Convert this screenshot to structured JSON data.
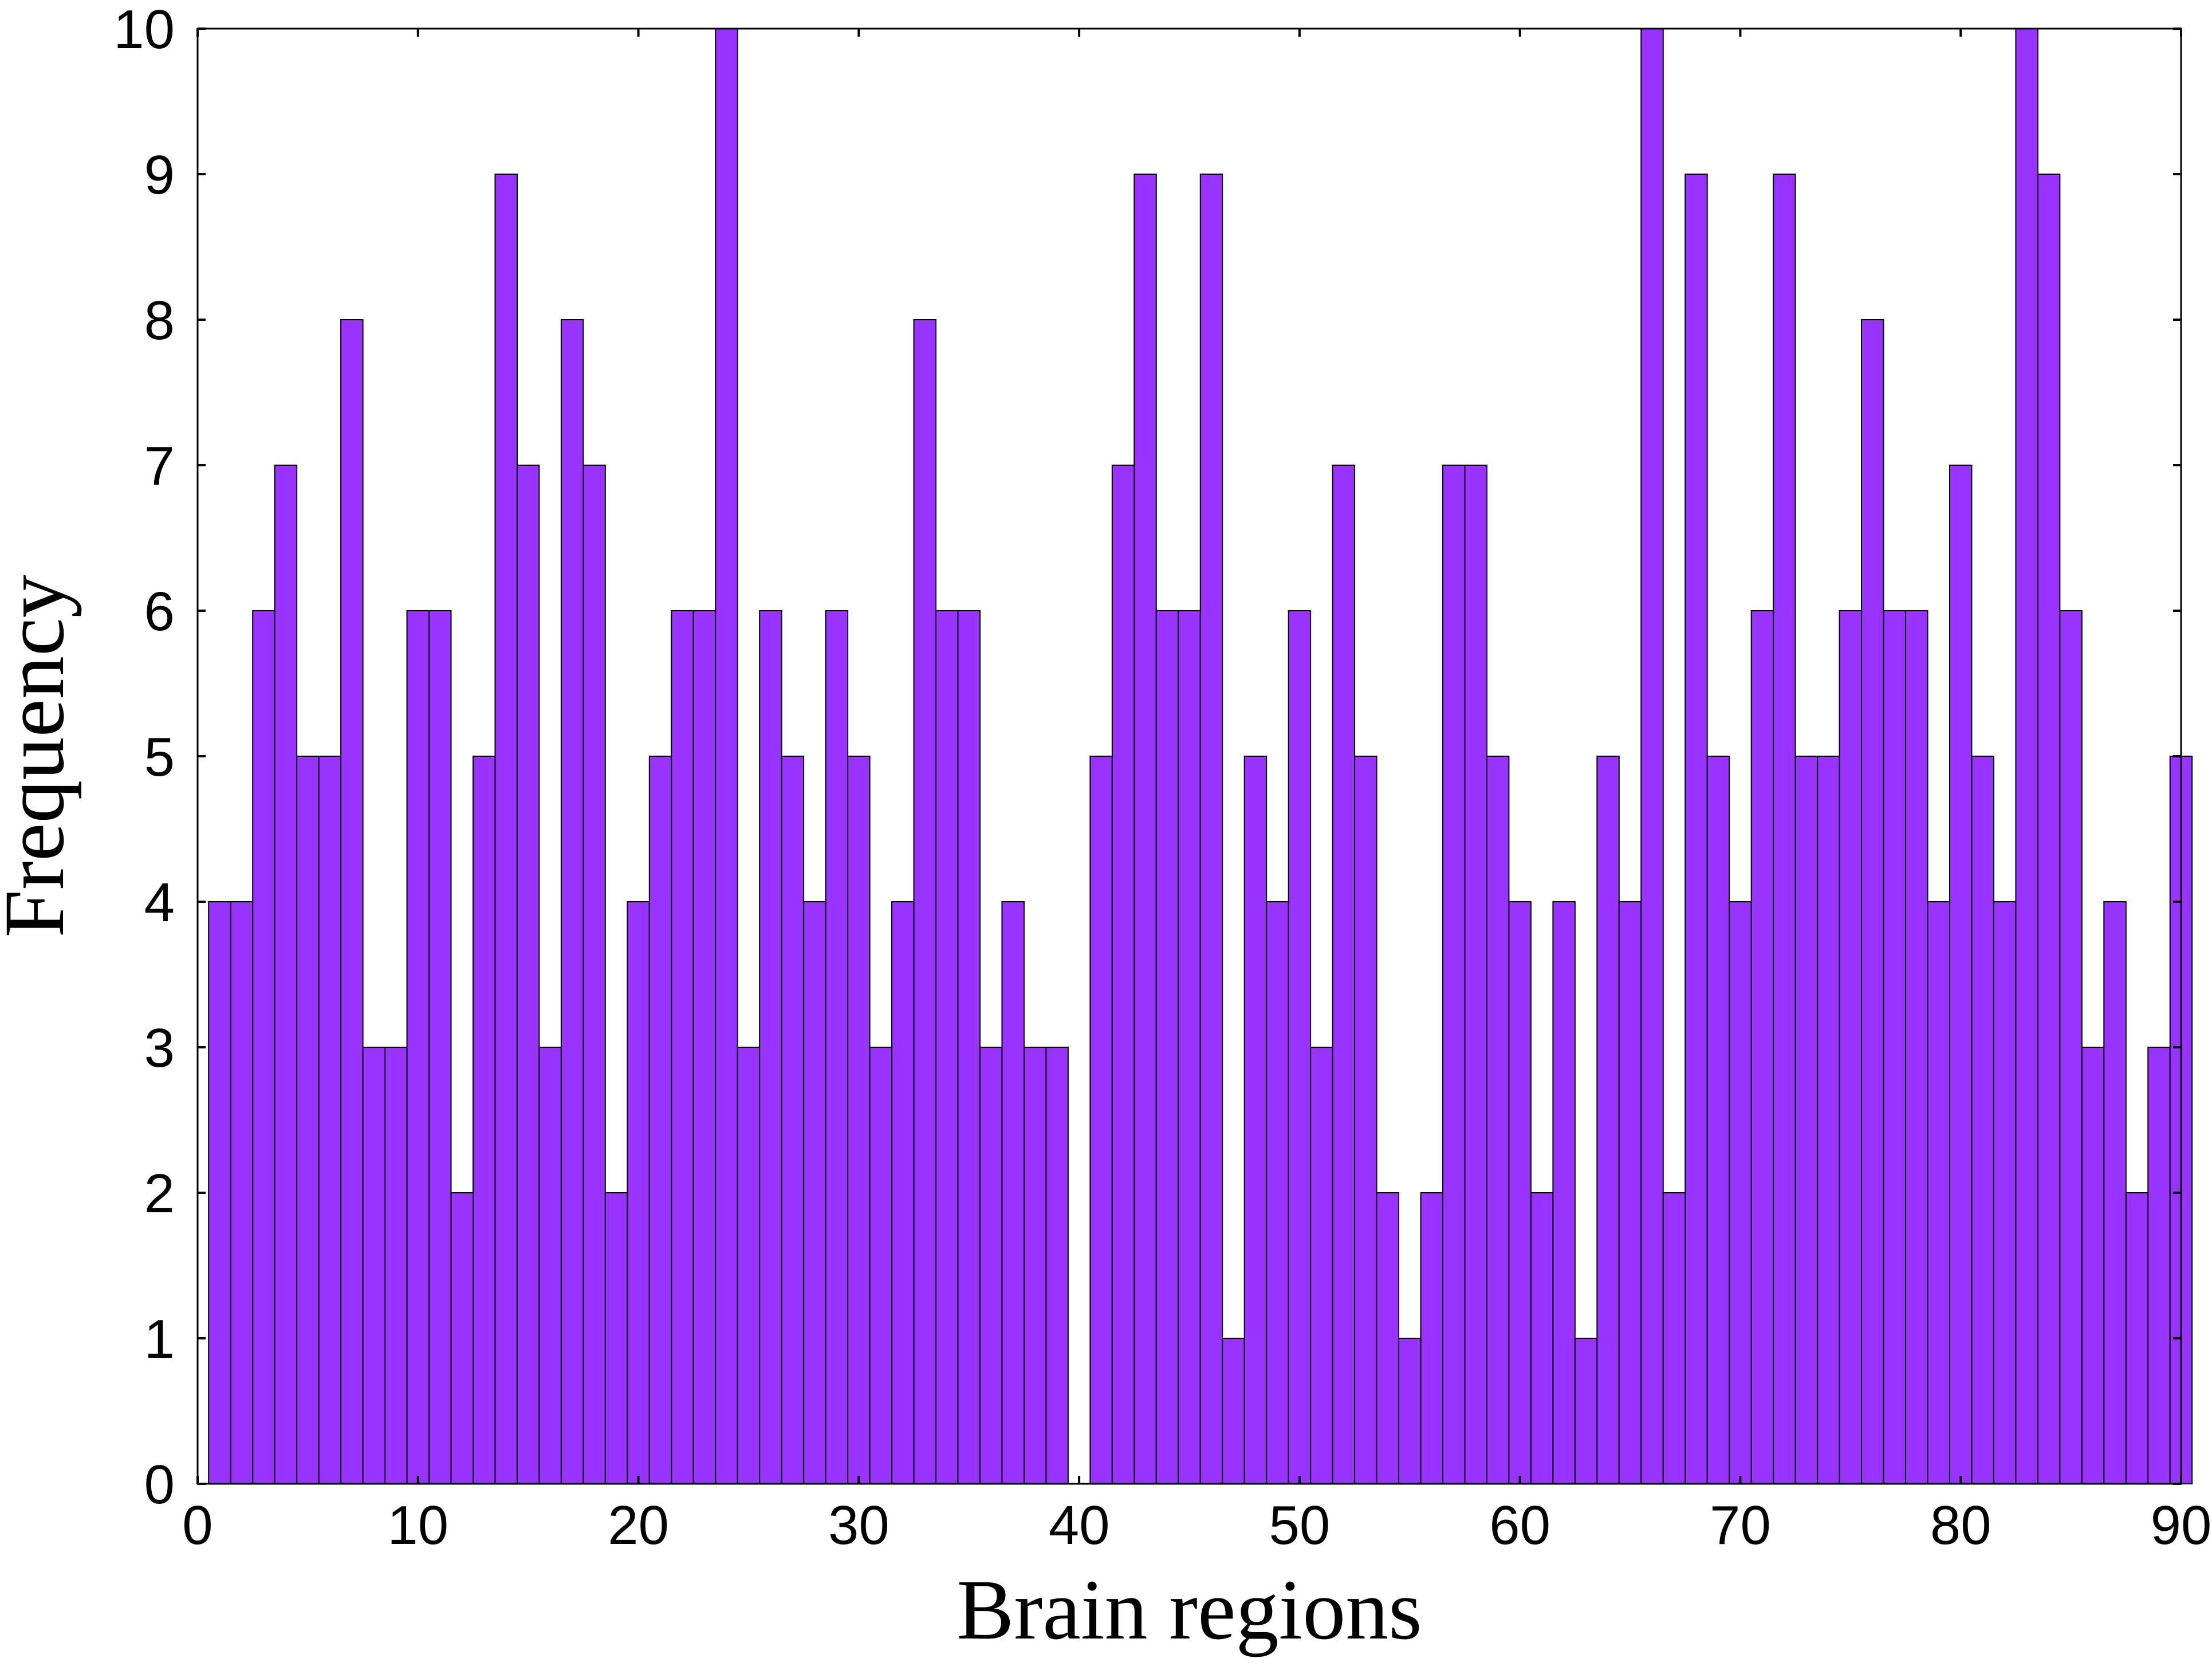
{
  "chart_data": {
    "type": "bar",
    "xlabel": "Brain regions",
    "ylabel": "Frequency",
    "xlim": [
      0,
      90
    ],
    "ylim": [
      0,
      10
    ],
    "x_ticks": [
      "0",
      "10",
      "20",
      "30",
      "40",
      "50",
      "60",
      "70",
      "80",
      "90"
    ],
    "y_ticks": [
      "0",
      "1",
      "2",
      "3",
      "4",
      "5",
      "6",
      "7",
      "8",
      "9",
      "10"
    ],
    "grid": false,
    "bar_color": "#9933FF",
    "edge_color": "#000000",
    "x": [
      1,
      2,
      3,
      4,
      5,
      6,
      7,
      8,
      9,
      10,
      11,
      12,
      13,
      14,
      15,
      16,
      17,
      18,
      19,
      20,
      21,
      22,
      23,
      24,
      25,
      26,
      27,
      28,
      29,
      30,
      31,
      32,
      33,
      34,
      35,
      36,
      37,
      38,
      39,
      40,
      41,
      42,
      43,
      44,
      45,
      46,
      47,
      48,
      49,
      50,
      51,
      52,
      53,
      54,
      55,
      56,
      57,
      58,
      59,
      60,
      61,
      62,
      63,
      64,
      65,
      66,
      67,
      68,
      69,
      70,
      71,
      72,
      73,
      74,
      75,
      76,
      77,
      78,
      79,
      80,
      81,
      82,
      83,
      84,
      85,
      86,
      87,
      88,
      89,
      90
    ],
    "values": [
      4,
      4,
      6,
      7,
      5,
      5,
      8,
      3,
      3,
      6,
      6,
      2,
      5,
      9,
      7,
      3,
      8,
      7,
      2,
      4,
      5,
      6,
      6,
      10,
      3,
      6,
      5,
      4,
      6,
      5,
      3,
      4,
      8,
      6,
      6,
      3,
      4,
      3,
      3,
      0,
      5,
      7,
      9,
      6,
      6,
      9,
      1,
      5,
      4,
      6,
      3,
      7,
      5,
      2,
      1,
      2,
      7,
      7,
      5,
      4,
      2,
      4,
      1,
      5,
      4,
      10,
      2,
      9,
      5,
      4,
      6,
      9,
      5,
      5,
      6,
      8,
      6,
      6,
      4,
      7,
      5,
      4,
      10,
      9,
      6,
      3,
      4,
      2,
      3,
      5
    ]
  }
}
